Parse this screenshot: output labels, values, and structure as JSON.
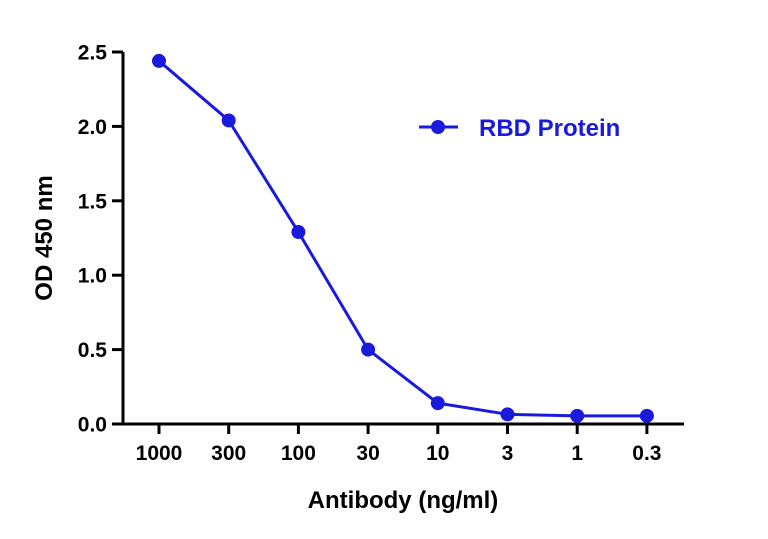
{
  "chart_data": {
    "type": "line",
    "title": "",
    "xlabel": "Antibody (ng/ml)",
    "ylabel": "OD 450 nm",
    "categories": [
      "1000",
      "300",
      "100",
      "30",
      "10",
      "3",
      "1",
      "0.3"
    ],
    "ylim": [
      0,
      2.5
    ],
    "yticks": [
      "0.0",
      "0.5",
      "1.0",
      "1.5",
      "2.0",
      "2.5"
    ],
    "grid": false,
    "legend_position": "top-right",
    "series": [
      {
        "name": "RBD Protein",
        "color": "#1a1adc",
        "marker": "circle",
        "values": [
          2.44,
          2.04,
          1.29,
          0.5,
          0.14,
          0.065,
          0.055,
          0.055
        ]
      }
    ]
  }
}
